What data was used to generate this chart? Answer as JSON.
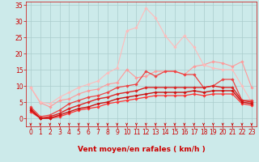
{
  "xlabel": "Vent moyen/en rafales ( km/h )",
  "xlim": [
    -0.5,
    23.5
  ],
  "ylim": [
    -2.5,
    36
  ],
  "yticks": [
    0,
    5,
    10,
    15,
    20,
    25,
    30,
    35
  ],
  "xticks": [
    0,
    1,
    2,
    3,
    4,
    5,
    6,
    7,
    8,
    9,
    10,
    11,
    12,
    13,
    14,
    15,
    16,
    17,
    18,
    19,
    20,
    21,
    22,
    23
  ],
  "bg_color": "#cceaea",
  "grid_color": "#aacccc",
  "lines": [
    {
      "y": [
        9.5,
        4.8,
        3.5,
        5.5,
        6.0,
        7.5,
        8.5,
        9.0,
        10.5,
        11.0,
        15.0,
        12.5,
        13.0,
        14.5,
        14.5,
        14.5,
        13.5,
        16.0,
        16.5,
        17.5,
        17.0,
        16.0,
        17.5,
        9.5
      ],
      "color": "#ff9999",
      "lw": 0.8,
      "marker": "D",
      "ms": 1.8,
      "zorder": 2
    },
    {
      "y": [
        9.5,
        5.0,
        4.5,
        6.5,
        8.0,
        9.5,
        10.5,
        11.5,
        14.0,
        15.5,
        27.0,
        28.0,
        34.0,
        31.0,
        25.5,
        22.0,
        25.5,
        22.0,
        16.5,
        15.5,
        15.0,
        15.0,
        10.0,
        5.0
      ],
      "color": "#ffbbbb",
      "lw": 0.8,
      "marker": "D",
      "ms": 1.8,
      "zorder": 2
    },
    {
      "y": [
        3.5,
        0.5,
        1.0,
        2.5,
        4.5,
        5.5,
        6.5,
        7.0,
        8.0,
        9.5,
        10.0,
        10.5,
        14.5,
        13.0,
        14.5,
        14.5,
        13.5,
        13.5,
        9.5,
        10.0,
        12.0,
        12.0,
        5.5,
        5.5
      ],
      "color": "#ee4444",
      "lw": 0.9,
      "marker": "D",
      "ms": 1.8,
      "zorder": 3
    },
    {
      "y": [
        3.0,
        0.0,
        0.5,
        1.5,
        3.0,
        4.0,
        5.0,
        6.0,
        6.5,
        7.5,
        8.0,
        8.5,
        9.5,
        9.5,
        9.5,
        9.5,
        9.5,
        9.5,
        9.5,
        10.0,
        9.5,
        9.5,
        5.5,
        5.0
      ],
      "color": "#dd2222",
      "lw": 1.0,
      "marker": "D",
      "ms": 1.8,
      "zorder": 4
    },
    {
      "y": [
        2.5,
        0.0,
        0.0,
        1.0,
        2.0,
        3.0,
        3.5,
        4.5,
        5.0,
        6.0,
        6.5,
        7.0,
        7.5,
        8.0,
        8.0,
        8.0,
        8.0,
        8.5,
        8.0,
        8.5,
        8.5,
        8.5,
        5.0,
        4.5
      ],
      "color": "#cc1111",
      "lw": 1.0,
      "marker": "D",
      "ms": 1.8,
      "zorder": 4
    },
    {
      "y": [
        2.0,
        0.0,
        0.0,
        0.5,
        1.5,
        2.5,
        3.0,
        3.5,
        4.5,
        5.0,
        5.5,
        6.0,
        6.5,
        7.0,
        7.0,
        7.0,
        7.0,
        7.5,
        7.0,
        7.5,
        7.5,
        7.5,
        4.5,
        4.0
      ],
      "color": "#ff3333",
      "lw": 0.9,
      "marker": "D",
      "ms": 1.8,
      "zorder": 3
    }
  ],
  "tick_fontsize": 5.5,
  "label_fontsize": 6.5
}
